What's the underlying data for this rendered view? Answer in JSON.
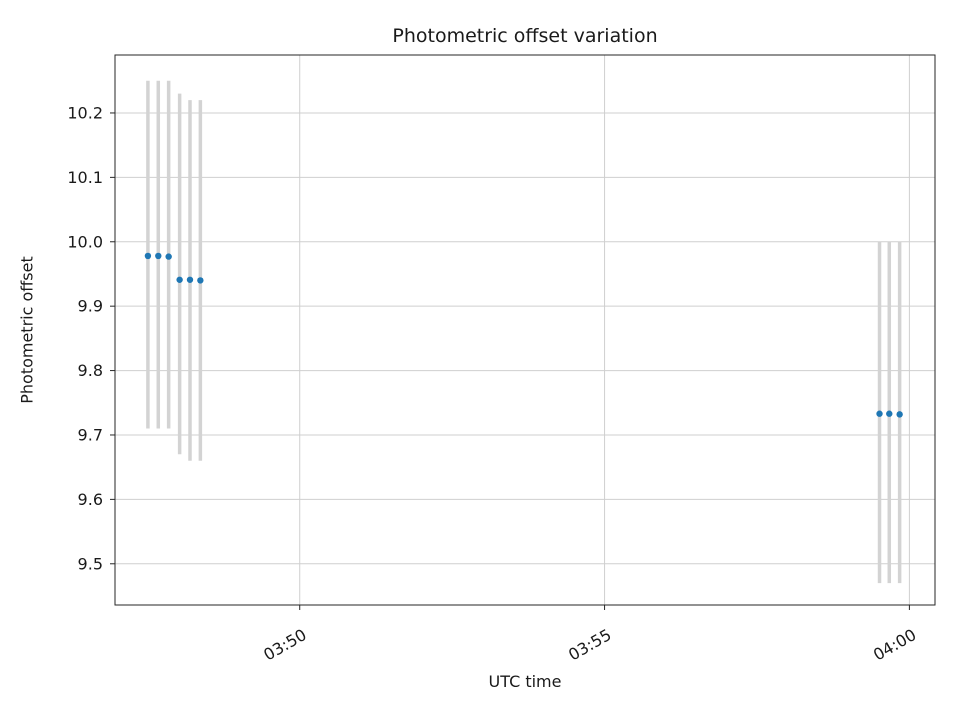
{
  "chart_data": {
    "type": "scatter",
    "title": "Photometric offset variation",
    "xlabel": "UTC time",
    "ylabel": "Photometric offset",
    "x_axis_note": "x values are minutes after 03:00 UTC, estimated from gridlines",
    "xlim": [
      46.97,
      60.42
    ],
    "ylim": [
      9.436,
      10.29
    ],
    "grid": true,
    "legend": "none",
    "x_tick_rotation_deg": 30,
    "marker_color": "#1f77b4",
    "errorbar_color": "#d3d3d3",
    "grid_color": "#cfcfcf",
    "axis_color": "#262626",
    "text_color": "#1a1a1a",
    "x_ticks": [
      {
        "value": 50,
        "label": "03:50"
      },
      {
        "value": 55,
        "label": "03:55"
      },
      {
        "value": 60,
        "label": "04:00"
      }
    ],
    "y_ticks": [
      {
        "value": 9.5,
        "label": "9.5"
      },
      {
        "value": 9.6,
        "label": "9.6"
      },
      {
        "value": 9.7,
        "label": "9.7"
      },
      {
        "value": 9.8,
        "label": "9.8"
      },
      {
        "value": 9.9,
        "label": "9.9"
      },
      {
        "value": 10.0,
        "label": "10.0"
      },
      {
        "value": 10.1,
        "label": "10.1"
      },
      {
        "value": 10.2,
        "label": "10.2"
      }
    ],
    "points": [
      {
        "x": 47.51,
        "x_time": "03:47:31",
        "y": 9.978,
        "y_lo": 9.71,
        "y_hi": 10.25
      },
      {
        "x": 47.68,
        "x_time": "03:47:41",
        "y": 9.978,
        "y_lo": 9.71,
        "y_hi": 10.25
      },
      {
        "x": 47.85,
        "x_time": "03:47:51",
        "y": 9.977,
        "y_lo": 9.71,
        "y_hi": 10.25
      },
      {
        "x": 48.03,
        "x_time": "03:48:02",
        "y": 9.941,
        "y_lo": 9.67,
        "y_hi": 10.23
      },
      {
        "x": 48.2,
        "x_time": "03:48:12",
        "y": 9.941,
        "y_lo": 9.66,
        "y_hi": 10.22
      },
      {
        "x": 48.37,
        "x_time": "03:48:22",
        "y": 9.94,
        "y_lo": 9.66,
        "y_hi": 10.22
      },
      {
        "x": 59.51,
        "x_time": "03:59:31",
        "y": 9.733,
        "y_lo": 9.47,
        "y_hi": 10.0
      },
      {
        "x": 59.67,
        "x_time": "03:59:40",
        "y": 9.733,
        "y_lo": 9.47,
        "y_hi": 10.0
      },
      {
        "x": 59.84,
        "x_time": "03:59:50",
        "y": 9.732,
        "y_lo": 9.47,
        "y_hi": 10.0
      }
    ]
  }
}
